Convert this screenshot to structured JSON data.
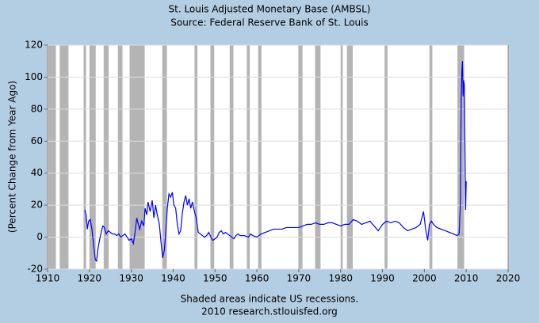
{
  "chart_data": {
    "type": "line",
    "title": "St. Louis Adjusted Monetary Base (AMBSL)",
    "subtitle": "Source: Federal Reserve Bank of St. Louis",
    "ylabel": "(Percent Change from Year Ago)",
    "notes": [
      "Shaded areas indicate US recessions.",
      "2010 research.stlouisfed.org"
    ],
    "color": "#0000ff",
    "recession_color": "#b4b4b4",
    "grid": true,
    "xlim": [
      1910,
      2020
    ],
    "xticks": [
      1910,
      1920,
      1930,
      1940,
      1950,
      1960,
      1970,
      1980,
      1990,
      2000,
      2010,
      2020
    ],
    "ylim": [
      -20,
      120
    ],
    "yticks": [
      -20,
      0,
      20,
      40,
      60,
      80,
      100,
      120
    ],
    "recessions": [
      [
        1910.0,
        1912.0
      ],
      [
        1912.9,
        1915.0
      ],
      [
        1918.6,
        1919.2
      ],
      [
        1920.0,
        1921.5
      ],
      [
        1923.4,
        1924.6
      ],
      [
        1926.8,
        1927.9
      ],
      [
        1929.6,
        1933.2
      ],
      [
        1937.4,
        1938.5
      ],
      [
        1945.1,
        1945.8
      ],
      [
        1948.9,
        1949.8
      ],
      [
        1953.5,
        1954.4
      ],
      [
        1957.6,
        1958.3
      ],
      [
        1960.3,
        1961.1
      ],
      [
        1969.9,
        1970.9
      ],
      [
        1973.9,
        1975.2
      ],
      [
        1980.0,
        1980.5
      ],
      [
        1981.5,
        1982.9
      ],
      [
        1990.5,
        1991.2
      ],
      [
        2001.2,
        2001.9
      ],
      [
        2007.9,
        2009.5
      ]
    ],
    "x": [
      1918.9,
      1919.2,
      1919.5,
      1919.8,
      1920.2,
      1920.6,
      1921,
      1921.4,
      1921.7,
      1922,
      1922.4,
      1922.8,
      1923.2,
      1923.6,
      1924,
      1924.5,
      1925,
      1925.5,
      1926,
      1926.5,
      1927,
      1927.5,
      1928,
      1928.5,
      1929,
      1929.5,
      1930,
      1930.5,
      1931,
      1931.3,
      1931.7,
      1932,
      1932.5,
      1933,
      1933.3,
      1933.7,
      1934,
      1934.5,
      1935,
      1935.4,
      1935.8,
      1936.2,
      1936.7,
      1937.1,
      1937.5,
      1937.9,
      1938.2,
      1938.6,
      1939,
      1939.4,
      1939.8,
      1940.2,
      1940.6,
      1941,
      1941.4,
      1941.8,
      1942.2,
      1942.6,
      1943,
      1943.4,
      1943.8,
      1944.2,
      1944.6,
      1945,
      1945.5,
      1946,
      1946.5,
      1947,
      1947.5,
      1948,
      1948.5,
      1949,
      1949.5,
      1950,
      1950.5,
      1951,
      1951.5,
      1952,
      1952.5,
      1953,
      1953.5,
      1954,
      1954.5,
      1955,
      1955.5,
      1956,
      1957,
      1958,
      1958.5,
      1959,
      1960,
      1960.5,
      1961,
      1962,
      1963,
      1964,
      1965,
      1966,
      1967,
      1968,
      1969,
      1970,
      1971,
      1972,
      1973,
      1974,
      1975,
      1976,
      1977,
      1978,
      1979,
      1980,
      1981,
      1982,
      1983,
      1984,
      1985,
      1986,
      1987,
      1988,
      1989,
      1990,
      1991,
      1992,
      1993,
      1994,
      1995,
      1996,
      1997,
      1998,
      1999,
      1999.8,
      2000.3,
      2000.8,
      2001.2,
      2001.7,
      2002.2,
      2003,
      2004,
      2005,
      2006,
      2007,
      2007.8,
      2008.3,
      2008.6,
      2008.8,
      2008.95,
      2009.1,
      2009.25,
      2009.4,
      2009.55,
      2009.7,
      2009.85,
      2010
    ],
    "values": [
      17,
      14,
      5,
      10,
      11,
      5,
      -5,
      -14,
      -15,
      -8,
      -2,
      3,
      7,
      6,
      2,
      4,
      3,
      2,
      2,
      1,
      2,
      0,
      1,
      2,
      0,
      -2,
      -1,
      -4,
      5,
      12,
      8,
      5,
      10,
      7,
      18,
      14,
      22,
      16,
      23,
      12,
      20,
      14,
      8,
      -3,
      -13,
      -8,
      2,
      18,
      27,
      25,
      28,
      20,
      18,
      8,
      2,
      4,
      15,
      22,
      26,
      20,
      24,
      18,
      22,
      17,
      12,
      3,
      2,
      1,
      0,
      1,
      3,
      0,
      -2,
      -1,
      0,
      3,
      4,
      2,
      3,
      2,
      1,
      0,
      -1,
      1,
      2,
      1,
      1,
      0,
      2,
      1,
      0,
      1,
      2,
      3,
      4,
      5,
      5,
      5,
      6,
      6,
      6,
      6,
      7,
      8,
      8,
      9,
      8,
      8,
      9,
      9,
      8,
      7,
      8,
      8,
      11,
      10,
      8,
      9,
      10,
      7,
      4,
      8,
      10,
      9,
      10,
      9,
      6,
      4,
      5,
      6,
      8,
      16,
      5,
      -2,
      8,
      10,
      8,
      6,
      5,
      4,
      3,
      2,
      1,
      2,
      20,
      85,
      103,
      110,
      88,
      98,
      95,
      55,
      17,
      35
    ]
  }
}
